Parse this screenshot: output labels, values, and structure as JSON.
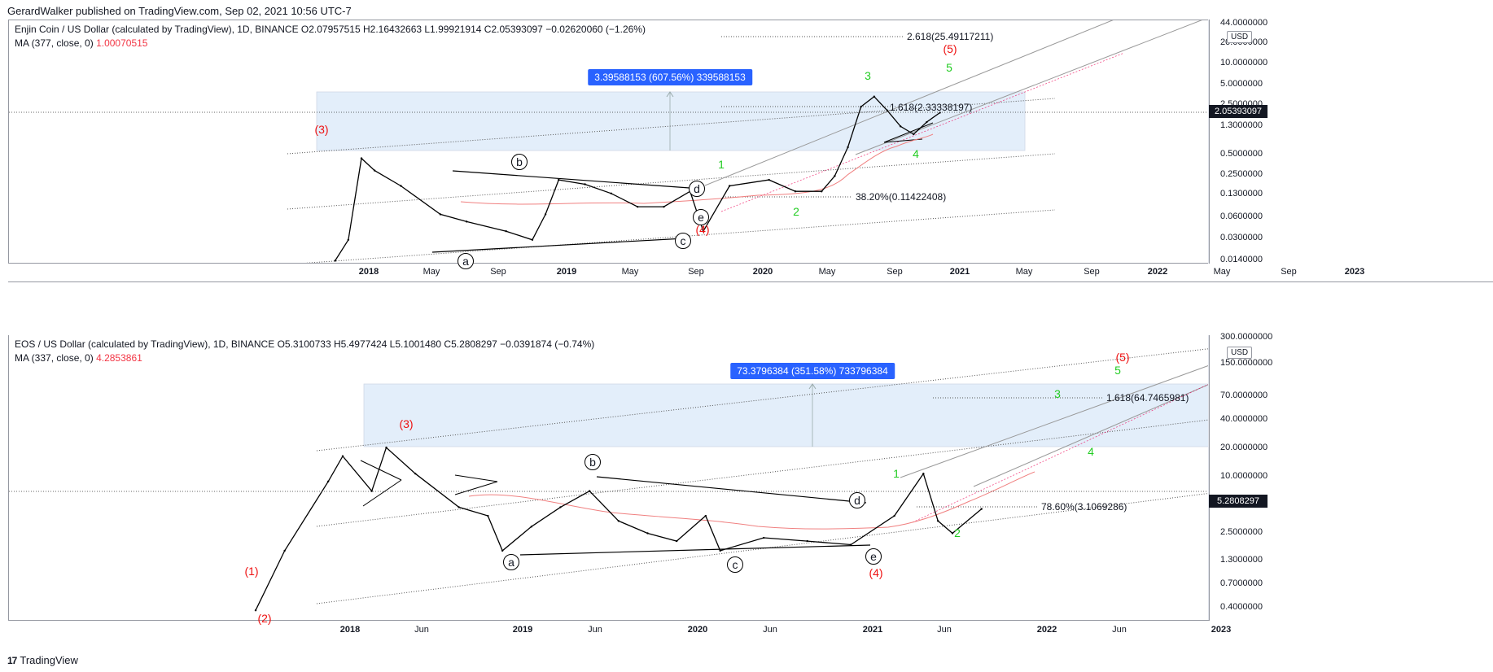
{
  "header": {
    "publisher_line": "GerardWalker published on TradingView.com, Sep 02, 2021 10:56 UTC-7"
  },
  "footer": {
    "logo_text": "17",
    "brand": "TradingView"
  },
  "panes": [
    {
      "legend_title": "Enjin Coin / US Dollar (calculated by TradingView), 1D, BINANCE  O2.07957515  H2.16432663  L1.99921914  C2.05393097  −0.02620060 (−1.26%)",
      "ma_label": "MA (377, close, 0)",
      "ma_value": "1.00070515",
      "currency": "USD",
      "last_price": "2.05393097",
      "measure_label": "3.39588153 (607.56%) 339588153",
      "fib_labels": [
        "2.618(25.49117211)",
        "1.618(2.33338197)",
        "38.20%(0.11422408)"
      ],
      "wave_labels": [
        {
          "text": "(3)",
          "color": "red"
        },
        {
          "text": "(4)",
          "color": "red"
        },
        {
          "text": "(5)",
          "color": "red"
        },
        {
          "text": "1",
          "color": "green"
        },
        {
          "text": "2",
          "color": "green"
        },
        {
          "text": "3",
          "color": "green"
        },
        {
          "text": "4",
          "color": "green"
        },
        {
          "text": "5",
          "color": "green"
        }
      ],
      "circle_labels": [
        "a",
        "b",
        "c",
        "d",
        "e"
      ],
      "y_ticks": [
        "44.0000000",
        "20.0000000",
        "10.0000000",
        "5.0000000",
        "2.5000000",
        "1.3000000",
        "0.5000000",
        "0.2500000",
        "0.1300000",
        "0.0600000",
        "0.0300000",
        "0.0140000"
      ],
      "x_ticks": [
        {
          "label": "2018",
          "year": true
        },
        {
          "label": "May"
        },
        {
          "label": "Sep"
        },
        {
          "label": "2019",
          "year": true
        },
        {
          "label": "May"
        },
        {
          "label": "Sep"
        },
        {
          "label": "2020",
          "year": true
        },
        {
          "label": "May"
        },
        {
          "label": "Sep"
        },
        {
          "label": "2021",
          "year": true
        },
        {
          "label": "May"
        },
        {
          "label": "Sep"
        },
        {
          "label": "2022",
          "year": true
        },
        {
          "label": "May"
        },
        {
          "label": "Sep"
        },
        {
          "label": "2023",
          "year": true
        }
      ]
    },
    {
      "legend_title": "EOS / US Dollar (calculated by TradingView), 1D, BINANCE  O5.3100733  H5.4977424  L5.1001480  C5.2808297  −0.0391874 (−0.74%)",
      "ma_label": "MA (337, close, 0)",
      "ma_value": "4.2853861",
      "currency": "USD",
      "last_price": "5.2808297",
      "measure_label": "73.3796384 (351.58%) 733796384",
      "fib_labels": [
        "1.618(64.7465981)",
        "78.60%(3.1069286)"
      ],
      "wave_labels": [
        {
          "text": "(1)",
          "color": "red"
        },
        {
          "text": "(2)",
          "color": "red"
        },
        {
          "text": "(3)",
          "color": "red"
        },
        {
          "text": "(4)",
          "color": "red"
        },
        {
          "text": "(5)",
          "color": "red"
        },
        {
          "text": "1",
          "color": "green"
        },
        {
          "text": "2",
          "color": "green"
        },
        {
          "text": "3",
          "color": "green"
        },
        {
          "text": "4",
          "color": "green"
        },
        {
          "text": "5",
          "color": "green"
        }
      ],
      "circle_labels": [
        "a",
        "b",
        "c",
        "d",
        "e"
      ],
      "y_ticks": [
        "300.0000000",
        "150.0000000",
        "70.0000000",
        "40.0000000",
        "20.0000000",
        "10.0000000",
        "2.5000000",
        "1.3000000",
        "0.7000000",
        "0.4000000"
      ],
      "x_ticks": [
        {
          "label": "2018",
          "year": true
        },
        {
          "label": "Jun"
        },
        {
          "label": "2019",
          "year": true
        },
        {
          "label": "Jun"
        },
        {
          "label": "2020",
          "year": true
        },
        {
          "label": "Jun"
        },
        {
          "label": "2021",
          "year": true
        },
        {
          "label": "Jun"
        },
        {
          "label": "2022",
          "year": true
        },
        {
          "label": "Jun"
        },
        {
          "label": "2023",
          "year": true
        }
      ]
    }
  ],
  "chart_data": [
    {
      "type": "line",
      "title": "Enjin Coin / US Dollar (calculated by TradingView), 1D, BINANCE",
      "scale": "log",
      "ylim": [
        0.014,
        44
      ],
      "series": [
        {
          "name": "Enjin Coin / US Dollar",
          "x": [
            "2017-11",
            "2017-12",
            "2018-01",
            "2018-02",
            "2018-04",
            "2018-07",
            "2018-09",
            "2018-12",
            "2019-02",
            "2019-03",
            "2019-04",
            "2019-06",
            "2019-08",
            "2019-10",
            "2019-12",
            "2020-02",
            "2020-03",
            "2020-05",
            "2020-08",
            "2020-10",
            "2020-12",
            "2021-01",
            "2021-02",
            "2021-03",
            "2021-04",
            "2021-05",
            "2021-06",
            "2021-07",
            "2021-08",
            "2021-09"
          ],
          "values": [
            0.015,
            0.03,
            0.45,
            0.3,
            0.18,
            0.07,
            0.055,
            0.04,
            0.03,
            0.07,
            0.22,
            0.19,
            0.14,
            0.09,
            0.09,
            0.15,
            0.04,
            0.18,
            0.22,
            0.15,
            0.15,
            0.25,
            0.65,
            2.5,
            3.5,
            2.2,
            1.3,
            1.0,
            1.5,
            2.05
          ]
        },
        {
          "name": "MA (377, close, 0)",
          "x": [
            "2019-03",
            "2019-09",
            "2020-03",
            "2020-09",
            "2021-01",
            "2021-04",
            "2021-09"
          ],
          "values": [
            0.09,
            0.11,
            0.11,
            0.12,
            0.17,
            0.45,
            1.0
          ]
        }
      ]
    },
    {
      "type": "line",
      "title": "EOS / US Dollar (calculated by TradingView), 1D, BINANCE",
      "scale": "log",
      "ylim": [
        0.4,
        300
      ],
      "series": [
        {
          "name": "EOS / US Dollar",
          "x": [
            "2017-07",
            "2017-09",
            "2017-12",
            "2018-01",
            "2018-03",
            "2018-04",
            "2018-06",
            "2018-09",
            "2018-11",
            "2018-12",
            "2019-02",
            "2019-04",
            "2019-06",
            "2019-08",
            "2019-10",
            "2019-12",
            "2020-02",
            "2020-03",
            "2020-06",
            "2020-09",
            "2020-12",
            "2021-03",
            "2021-05",
            "2021-06",
            "2021-07",
            "2021-09"
          ],
          "values": [
            0.5,
            2,
            10,
            18,
            8,
            22,
            12,
            5.5,
            4.5,
            2.0,
            3.5,
            5.5,
            8,
            4,
            3,
            2.5,
            4.5,
            2.0,
            2.7,
            2.5,
            2.3,
            4.5,
            12,
            4,
            3,
            5.28
          ]
        },
        {
          "name": "MA (337, close, 0)",
          "x": [
            "2018-06",
            "2019-01",
            "2019-07",
            "2020-01",
            "2020-07",
            "2021-01",
            "2021-06",
            "2021-09"
          ],
          "values": [
            10,
            8.5,
            5.5,
            4,
            3.2,
            3.0,
            3.6,
            4.29
          ]
        }
      ]
    }
  ]
}
